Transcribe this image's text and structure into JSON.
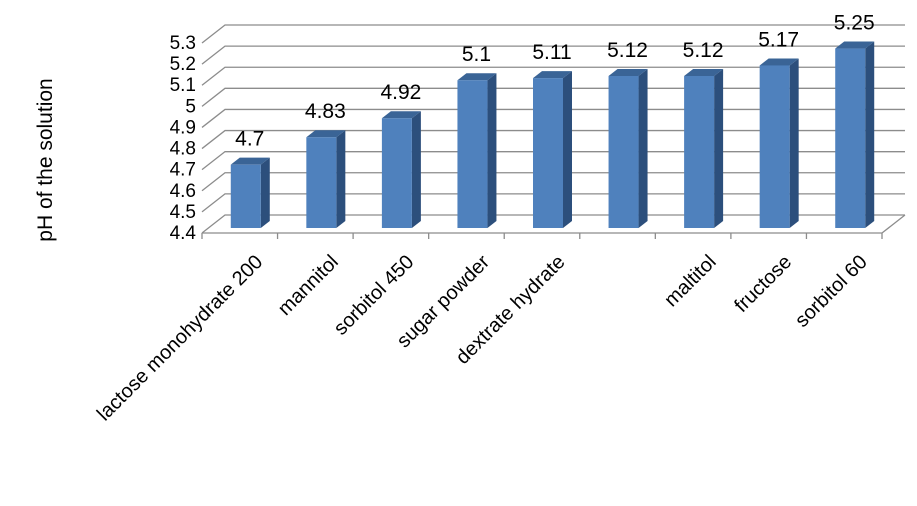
{
  "chart_data": {
    "type": "bar",
    "style": "3d-column",
    "categories": [
      "lactose monohydrate 200",
      "mannitol",
      "sorbitol 450",
      "sugar powder",
      "dextrate hydrate",
      "",
      "maltitol",
      "fructose",
      "sorbitol 60"
    ],
    "values": [
      4.7,
      4.83,
      4.92,
      5.1,
      5.11,
      5.12,
      5.12,
      5.17,
      5.25
    ],
    "data_labels": [
      "4.7",
      "4.83",
      "4.92",
      "5.1",
      "5.11",
      "5.12",
      "5.12",
      "5.17",
      "5.25"
    ],
    "ylabel": "pH of the solution",
    "xlabel": "",
    "ylim": [
      4.4,
      5.3
    ],
    "yticks": [
      "4.4",
      "4.5",
      "4.6",
      "4.7",
      "4.8",
      "4.9",
      "5",
      "5.1",
      "5.2",
      "5.3"
    ],
    "grid": true,
    "legend": "none",
    "colors": {
      "bar_front": "#4f81bd",
      "bar_side": "#2c4f7c",
      "bar_top": "#3a6496",
      "grid": "#8c8c8c"
    }
  }
}
